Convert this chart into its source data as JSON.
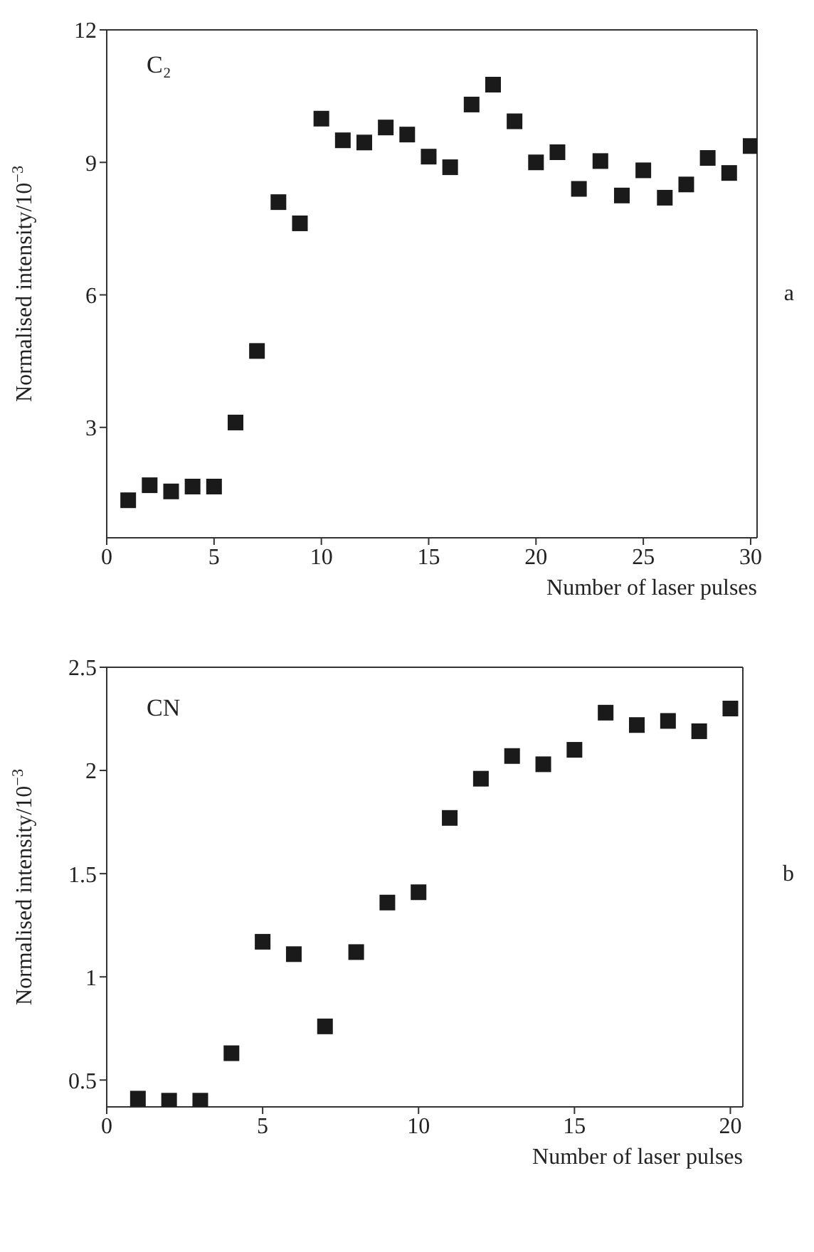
{
  "chart_data": [
    {
      "type": "scatter",
      "xlabel": "Number of laser pulses",
      "ylabel": "Normalised intensity/10$^{−3}$",
      "annotations": [
        "C₂",
        "a"
      ],
      "x": [
        1,
        2,
        3,
        4,
        5,
        6,
        7,
        8,
        9,
        10,
        11,
        12,
        13,
        14,
        15,
        16,
        17,
        18,
        19,
        20,
        21,
        22,
        23,
        24,
        25,
        26,
        27,
        28,
        29,
        30
      ],
      "series": [
        {
          "color": "#1a1a1a",
          "values": [
            1.35,
            1.69,
            1.55,
            1.66,
            1.66,
            3.11,
            4.73,
            8.1,
            7.62,
            9.99,
            9.5,
            9.45,
            9.79,
            9.63,
            9.13,
            8.89,
            10.31,
            10.76,
            9.93,
            9.0,
            9.23,
            8.4,
            9.03,
            8.25,
            8.82,
            8.2,
            8.5,
            9.1,
            8.76,
            9.37
          ]
        }
      ],
      "xlim": [
        0,
        30.3
      ],
      "xticks": [
        0,
        5,
        10,
        15,
        20,
        25,
        30
      ],
      "ylim": [
        0.5,
        12
      ],
      "yticks": [
        3,
        6,
        9,
        12
      ],
      "marker": "square",
      "grid": false,
      "legend": false
    },
    {
      "type": "scatter",
      "xlabel": "Number of laser pulses",
      "ylabel": "Normalised intensity/10$^{−3}$",
      "annotations": [
        "CN",
        "b"
      ],
      "x": [
        1,
        2,
        3,
        4,
        5,
        6,
        7,
        8,
        9,
        10,
        11,
        12,
        13,
        14,
        15,
        16,
        17,
        18,
        19,
        20
      ],
      "series": [
        {
          "color": "#1a1a1a",
          "values": [
            0.41,
            0.4,
            0.4,
            0.63,
            1.17,
            1.11,
            0.76,
            1.12,
            1.36,
            1.41,
            1.77,
            1.96,
            2.07,
            2.03,
            2.1,
            2.28,
            2.22,
            2.24,
            2.19,
            2.3
          ]
        }
      ],
      "xlim": [
        0,
        20.4
      ],
      "xticks": [
        0,
        5,
        10,
        15,
        20
      ],
      "ylim": [
        0.37,
        2.5
      ],
      "yticks": [
        0.5,
        1.0,
        1.5,
        2.0,
        2.5
      ],
      "marker": "square",
      "grid": false,
      "legend": false
    }
  ]
}
